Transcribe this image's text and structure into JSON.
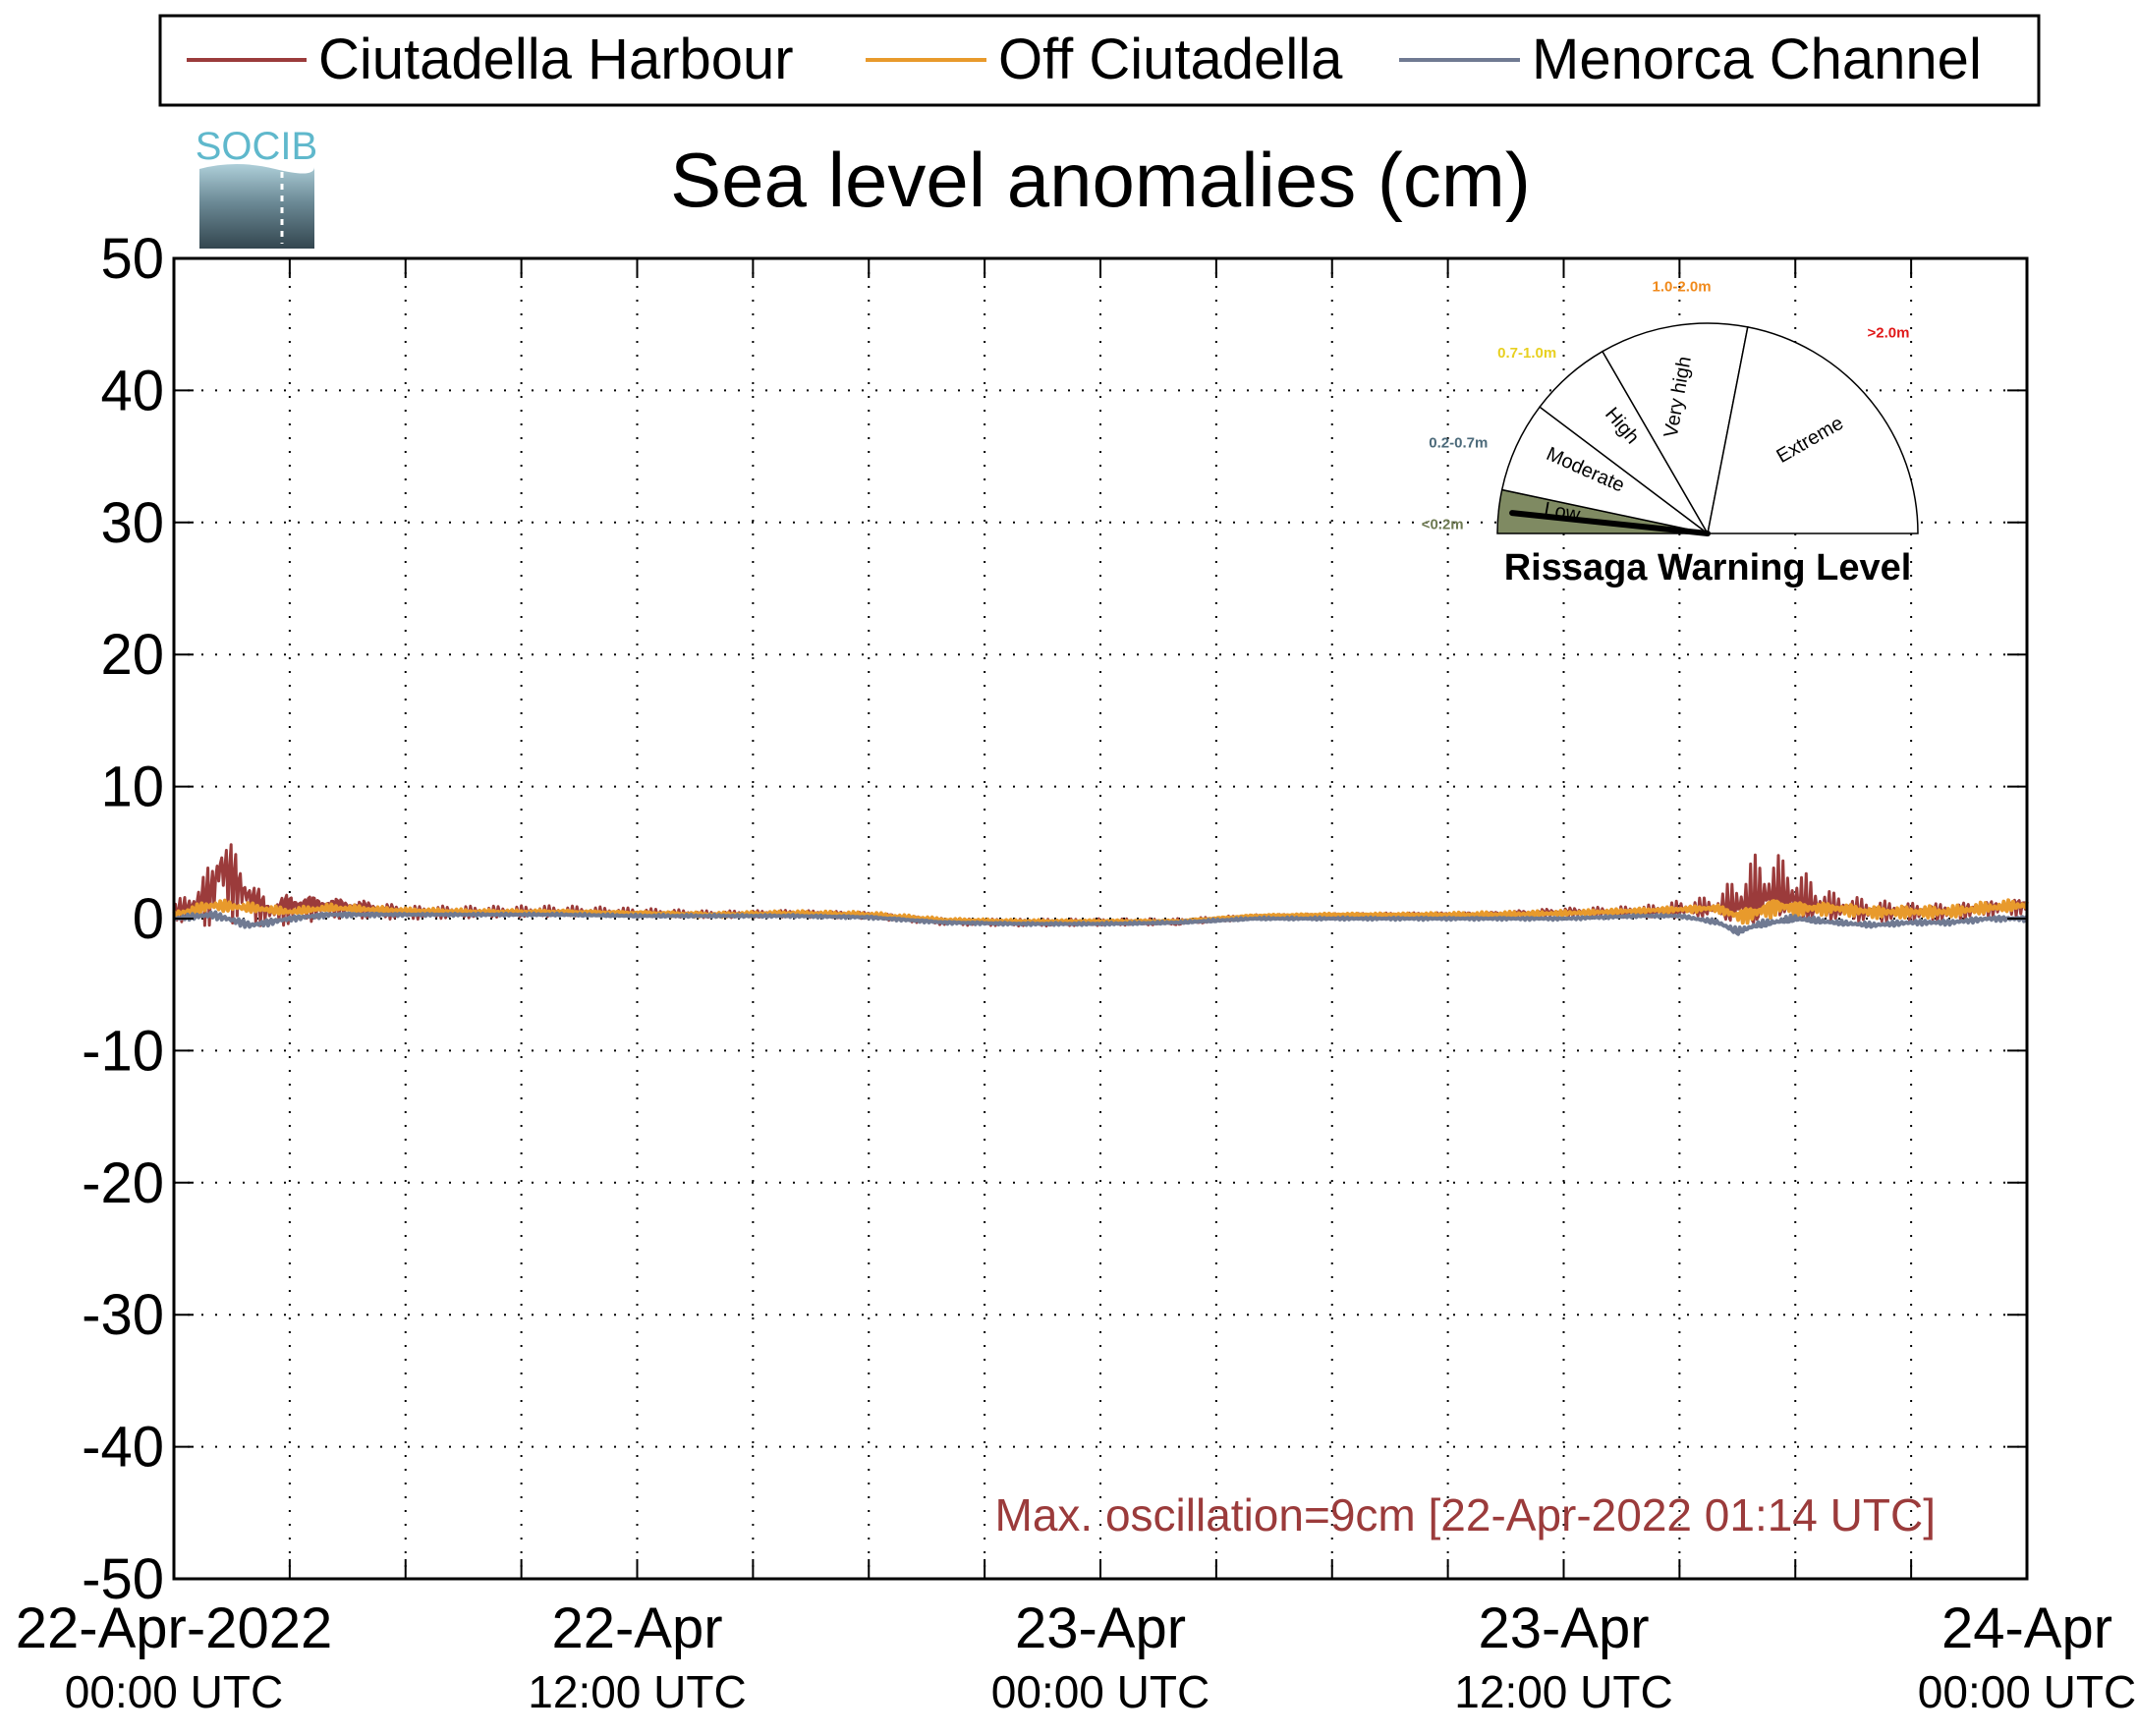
{
  "chart_data": {
    "type": "line",
    "title": "Sea level anomalies (cm)",
    "ylim": [
      -50,
      50
    ],
    "yticks": [
      "50",
      "40",
      "30",
      "20",
      "10",
      "0",
      "-10",
      "-20",
      "-30",
      "-40",
      "-50"
    ],
    "xlim_hours": [
      0,
      48
    ],
    "xticks": [
      {
        "line1": "22-Apr-2022",
        "line2": "00:00 UTC"
      },
      {
        "line1": "22-Apr",
        "line2": "12:00 UTC"
      },
      {
        "line1": "23-Apr",
        "line2": "00:00 UTC"
      },
      {
        "line1": "23-Apr",
        "line2": "12:00 UTC"
      },
      {
        "line1": "24-Apr",
        "line2": "00:00 UTC"
      }
    ],
    "grid": true,
    "legend": {
      "placement": "top",
      "entries": [
        "Ciutadella Harbour",
        "Off Ciutadella",
        "Menorca Channel"
      ]
    },
    "series": [
      {
        "name": "Ciutadella Harbour",
        "color": "#9b3b3b",
        "x": [
          0,
          0.5,
          1,
          1.2,
          1.5,
          2,
          2.5,
          3,
          4,
          5,
          6,
          8,
          10,
          12,
          14,
          16,
          18,
          20,
          22,
          24,
          26,
          28,
          30,
          32,
          34,
          36,
          38,
          40,
          40.5,
          41,
          41.5,
          42,
          42.5,
          43,
          44,
          45,
          46,
          47,
          48
        ],
        "y": [
          0.5,
          1,
          2,
          4,
          3,
          1.5,
          0.5,
          1,
          1,
          0.8,
          0.5,
          0.5,
          0.5,
          0.4,
          0.3,
          0.4,
          0.3,
          -0.2,
          -0.3,
          -0.3,
          -0.3,
          0.1,
          0.2,
          0.3,
          0.3,
          0.5,
          0.5,
          0.8,
          1,
          1.5,
          2,
          1.5,
          1,
          0.8,
          0.5,
          0.5,
          0.5,
          0.8,
          1
        ],
        "amp": [
          0.8,
          1.5,
          3,
          4,
          3.5,
          2,
          1.2,
          1.5,
          1,
          0.8,
          0.6,
          0.5,
          0.5,
          0.4,
          0.3,
          0.3,
          0.3,
          0.3,
          0.3,
          0.3,
          0.3,
          0.2,
          0.2,
          0.2,
          0.3,
          0.4,
          0.5,
          1,
          2.5,
          3.5,
          3,
          2.5,
          2,
          1.2,
          1,
          0.8,
          0.8,
          0.7,
          0.8
        ]
      },
      {
        "name": "Off Ciutadella",
        "color": "#e89a2c",
        "x": [
          0,
          1,
          2,
          3,
          4,
          6,
          8,
          10,
          12,
          14,
          16,
          18,
          20,
          22,
          24,
          26,
          28,
          30,
          32,
          34,
          36,
          38,
          40,
          40.5,
          41,
          41.5,
          42,
          43,
          44,
          45,
          46,
          47,
          48
        ],
        "y": [
          0.3,
          1,
          0.8,
          0.5,
          0.8,
          0.6,
          0.5,
          0.5,
          0.4,
          0.3,
          0.4,
          0.3,
          -0.1,
          -0.2,
          -0.2,
          -0.2,
          0.2,
          0.3,
          0.3,
          0.3,
          0.4,
          0.6,
          0.8,
          0.2,
          0.5,
          1,
          0.8,
          0.8,
          0.5,
          0.5,
          0.5,
          0.8,
          1
        ],
        "amp": [
          0.3,
          0.5,
          0.4,
          0.3,
          0.3,
          0.2,
          0.2,
          0.2,
          0.2,
          0.2,
          0.2,
          0.2,
          0.1,
          0.1,
          0.1,
          0.1,
          0.1,
          0.1,
          0.1,
          0.2,
          0.2,
          0.2,
          0.3,
          0.6,
          0.8,
          0.8,
          0.7,
          0.5,
          0.5,
          0.5,
          0.5,
          0.5,
          0.5
        ]
      },
      {
        "name": "Menorca Channel",
        "color": "#707a92",
        "x": [
          0,
          1,
          2,
          3,
          4,
          6,
          8,
          10,
          12,
          14,
          16,
          18,
          20,
          22,
          24,
          26,
          28,
          30,
          32,
          34,
          36,
          38,
          39,
          40,
          40.5,
          41,
          42,
          43,
          44,
          45,
          46,
          47,
          48
        ],
        "y": [
          0,
          0.3,
          -0.5,
          0,
          0.3,
          0.3,
          0.3,
          0.3,
          0.2,
          0.2,
          0.2,
          0.1,
          -0.3,
          -0.4,
          -0.4,
          -0.3,
          0,
          0,
          0,
          0,
          0,
          0.2,
          0.2,
          -0.3,
          -1,
          -0.5,
          0,
          -0.3,
          -0.5,
          -0.3,
          -0.3,
          0,
          0
        ],
        "amp": [
          0.2,
          0.3,
          0.3,
          0.2,
          0.2,
          0.1,
          0.1,
          0.1,
          0.1,
          0.1,
          0.1,
          0.1,
          0.1,
          0.1,
          0.1,
          0.1,
          0.1,
          0.1,
          0.1,
          0.1,
          0.1,
          0.1,
          0.1,
          0.2,
          0.3,
          0.3,
          0.3,
          0.2,
          0.2,
          0.2,
          0.2,
          0.2,
          0.2
        ]
      }
    ],
    "annotation": {
      "text": "Max. oscillation=9cm [22-Apr-2022 01:14 UTC]",
      "color": "#9b3b3b"
    }
  },
  "logo": {
    "text": "SOCIB"
  },
  "gauge": {
    "title": "Rissaga Warning Level",
    "current_level": "Low",
    "sectors": [
      {
        "label": "Low",
        "range": "<0.2m",
        "range_color": "#6e7a52",
        "fill": "#7f8a62"
      },
      {
        "label": "Moderate",
        "range": "0.2-0.7m",
        "range_color": "#4c6a7a",
        "fill": "#ffffff"
      },
      {
        "label": "High",
        "range": "0.7-1.0m",
        "range_color": "#e8d020",
        "fill": "#ffffff"
      },
      {
        "label": "Very high",
        "range": "1.0-2.0m",
        "range_color": "#f08a1c",
        "fill": "#ffffff"
      },
      {
        "label": "Extreme",
        "range": ">2.0m",
        "range_color": "#e01818",
        "fill": "#ffffff"
      }
    ]
  }
}
